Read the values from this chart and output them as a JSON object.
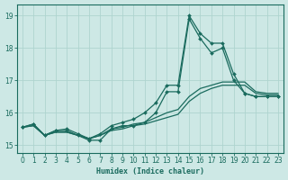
{
  "xlabel": "Humidex (Indice chaleur)",
  "bg_color": "#cde8e5",
  "line_color": "#1a6b5e",
  "grid_color": "#aed4cf",
  "xlim_min": -0.5,
  "xlim_max": 23.5,
  "ylim_min": 14.75,
  "ylim_max": 19.35,
  "yticks": [
    15,
    16,
    17,
    18,
    19
  ],
  "xticks": [
    0,
    1,
    2,
    3,
    4,
    5,
    6,
    7,
    8,
    9,
    10,
    11,
    12,
    13,
    14,
    15,
    16,
    17,
    18,
    19,
    20,
    21,
    22,
    23
  ],
  "curves": [
    {
      "x": [
        0,
        1,
        2,
        3,
        4,
        5,
        6,
        7,
        8,
        9,
        10,
        11,
        12,
        13,
        14,
        15,
        16,
        17,
        18,
        19,
        20,
        21,
        22,
        23
      ],
      "y": [
        15.55,
        15.65,
        15.3,
        15.45,
        15.45,
        15.3,
        15.15,
        15.15,
        15.5,
        15.6,
        15.6,
        15.7,
        16.0,
        16.65,
        16.65,
        18.9,
        18.3,
        17.85,
        18.0,
        17.0,
        16.6,
        16.5,
        16.5,
        16.5
      ],
      "marker": "D",
      "ms": 2.0,
      "lw": 0.9
    },
    {
      "x": [
        0,
        1,
        2,
        3,
        4,
        5,
        6,
        7,
        8,
        9,
        10,
        11,
        12,
        13,
        14,
        15,
        16,
        17,
        18,
        19,
        20,
        21,
        22,
        23
      ],
      "y": [
        15.55,
        15.65,
        15.3,
        15.45,
        15.5,
        15.35,
        15.2,
        15.35,
        15.6,
        15.7,
        15.8,
        16.0,
        16.3,
        16.85,
        16.85,
        19.0,
        18.45,
        18.15,
        18.15,
        17.2,
        16.6,
        16.5,
        16.5,
        16.5
      ],
      "marker": "D",
      "ms": 2.0,
      "lw": 0.9
    },
    {
      "x": [
        0,
        1,
        2,
        3,
        4,
        5,
        6,
        7,
        8,
        9,
        10,
        11,
        12,
        13,
        14,
        15,
        16,
        17,
        18,
        19,
        20,
        21,
        22,
        23
      ],
      "y": [
        15.55,
        15.6,
        15.3,
        15.4,
        15.4,
        15.3,
        15.2,
        15.3,
        15.45,
        15.5,
        15.6,
        15.65,
        15.75,
        15.85,
        15.95,
        16.35,
        16.6,
        16.75,
        16.85,
        16.85,
        16.85,
        16.6,
        16.55,
        16.55
      ],
      "marker": null,
      "ms": 0,
      "lw": 0.9
    },
    {
      "x": [
        0,
        1,
        2,
        3,
        4,
        5,
        6,
        7,
        8,
        9,
        10,
        11,
        12,
        13,
        14,
        15,
        16,
        17,
        18,
        19,
        20,
        21,
        22,
        23
      ],
      "y": [
        15.55,
        15.6,
        15.3,
        15.4,
        15.4,
        15.3,
        15.2,
        15.3,
        15.5,
        15.55,
        15.65,
        15.7,
        15.85,
        16.0,
        16.1,
        16.5,
        16.75,
        16.85,
        16.95,
        16.95,
        16.95,
        16.65,
        16.6,
        16.6
      ],
      "marker": null,
      "ms": 0,
      "lw": 0.9
    }
  ]
}
